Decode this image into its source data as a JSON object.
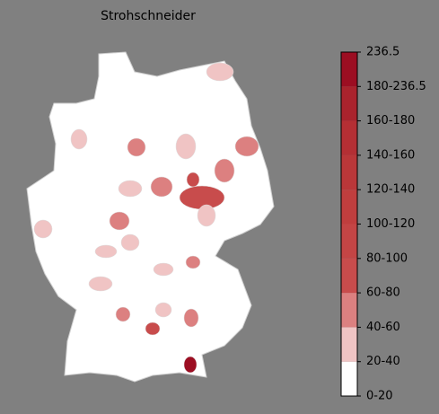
{
  "title": "Strohschneider",
  "colorbar": {
    "ticks": [
      {
        "value": 0,
        "label": "0-20"
      },
      {
        "value": 20,
        "label": "20-40"
      },
      {
        "value": 40,
        "label": "40-60"
      },
      {
        "value": 60,
        "label": "60-80"
      },
      {
        "value": 80,
        "label": "80-100"
      },
      {
        "value": 100,
        "label": "100-120"
      },
      {
        "value": 120,
        "label": "120-140"
      },
      {
        "value": 140,
        "label": "140-160"
      },
      {
        "value": 160,
        "label": "160-180"
      },
      {
        "value": 180,
        "label": "180-236.5"
      },
      236.5
    ],
    "colors": [
      "#ffffff",
      "#f0c4c4",
      "#dc8080",
      "#c84c4c",
      "#c44545",
      "#c03e3e",
      "#ba3739",
      "#b42f34",
      "#aa232d",
      "#9c0e22"
    ]
  },
  "regions": [
    {
      "value": 30
    },
    {
      "value": 30
    },
    {
      "value": 50
    },
    {
      "value": 30
    },
    {
      "value": 50
    },
    {
      "value": 50
    },
    {
      "value": 70
    },
    {
      "value": 75
    },
    {
      "value": 50
    },
    {
      "value": 30
    },
    {
      "value": 30
    },
    {
      "value": 50
    },
    {
      "value": 30
    },
    {
      "value": 30
    },
    {
      "value": 30
    },
    {
      "value": 30
    },
    {
      "value": 50
    },
    {
      "value": 30
    },
    {
      "value": 50
    },
    {
      "value": 30
    },
    {
      "value": 50
    },
    {
      "value": 70
    },
    {
      "value": 200
    }
  ]
}
